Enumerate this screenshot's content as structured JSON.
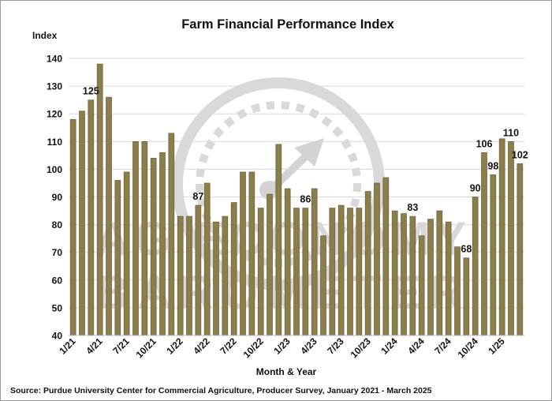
{
  "chart_data": {
    "type": "bar",
    "title": "Farm Financial Performance Index",
    "ylabel": "Index",
    "xlabel": "Month & Year",
    "ylim": [
      40,
      140
    ],
    "yticks": [
      40,
      50,
      60,
      70,
      80,
      90,
      100,
      110,
      120,
      130,
      140
    ],
    "grid": true,
    "bar_color": "#8b7e4a",
    "bar_edge_color": "#5f5530",
    "grid_color": "#d9d9d9",
    "watermark": {
      "line1": "AG ECONOMY",
      "line2": "BAROMETER",
      "color": "#d8d8d8"
    },
    "x_tick_labels": [
      {
        "index": 0,
        "label": "1/21"
      },
      {
        "index": 3,
        "label": "4/21"
      },
      {
        "index": 6,
        "label": "7/21"
      },
      {
        "index": 9,
        "label": "10/21"
      },
      {
        "index": 12,
        "label": "1/22"
      },
      {
        "index": 15,
        "label": "4/22"
      },
      {
        "index": 18,
        "label": "7/22"
      },
      {
        "index": 21,
        "label": "10/22"
      },
      {
        "index": 24,
        "label": "1/23"
      },
      {
        "index": 27,
        "label": "4/23"
      },
      {
        "index": 30,
        "label": "7/23"
      },
      {
        "index": 33,
        "label": "10/23"
      },
      {
        "index": 36,
        "label": "1/24"
      },
      {
        "index": 39,
        "label": "4/24"
      },
      {
        "index": 42,
        "label": "7/24"
      },
      {
        "index": 45,
        "label": "10/24"
      },
      {
        "index": 48,
        "label": "1/25"
      }
    ],
    "values": [
      118,
      121,
      125,
      138,
      126,
      96,
      99,
      110,
      110,
      104,
      106,
      113,
      83,
      83,
      87,
      95,
      81,
      83,
      88,
      99,
      99,
      86,
      91,
      109,
      93,
      86,
      86,
      93,
      76,
      86,
      87,
      86,
      86,
      92,
      95,
      97,
      85,
      84,
      83,
      76,
      82,
      85,
      81,
      72,
      68,
      90,
      106,
      98,
      111,
      110,
      102
    ],
    "data_labels": [
      {
        "index": 2,
        "text": "125"
      },
      {
        "index": 14,
        "text": "87"
      },
      {
        "index": 26,
        "text": "86"
      },
      {
        "index": 38,
        "text": "83"
      },
      {
        "index": 44,
        "text": "68"
      },
      {
        "index": 45,
        "text": "90"
      },
      {
        "index": 46,
        "text": "106"
      },
      {
        "index": 47,
        "text": "98"
      },
      {
        "index": 49,
        "text": "110"
      },
      {
        "index": 50,
        "text": "102"
      }
    ]
  },
  "source": "Source: Purdue University Center for Commercial Agriculture, Producer Survey, January 2021 - March 2025"
}
